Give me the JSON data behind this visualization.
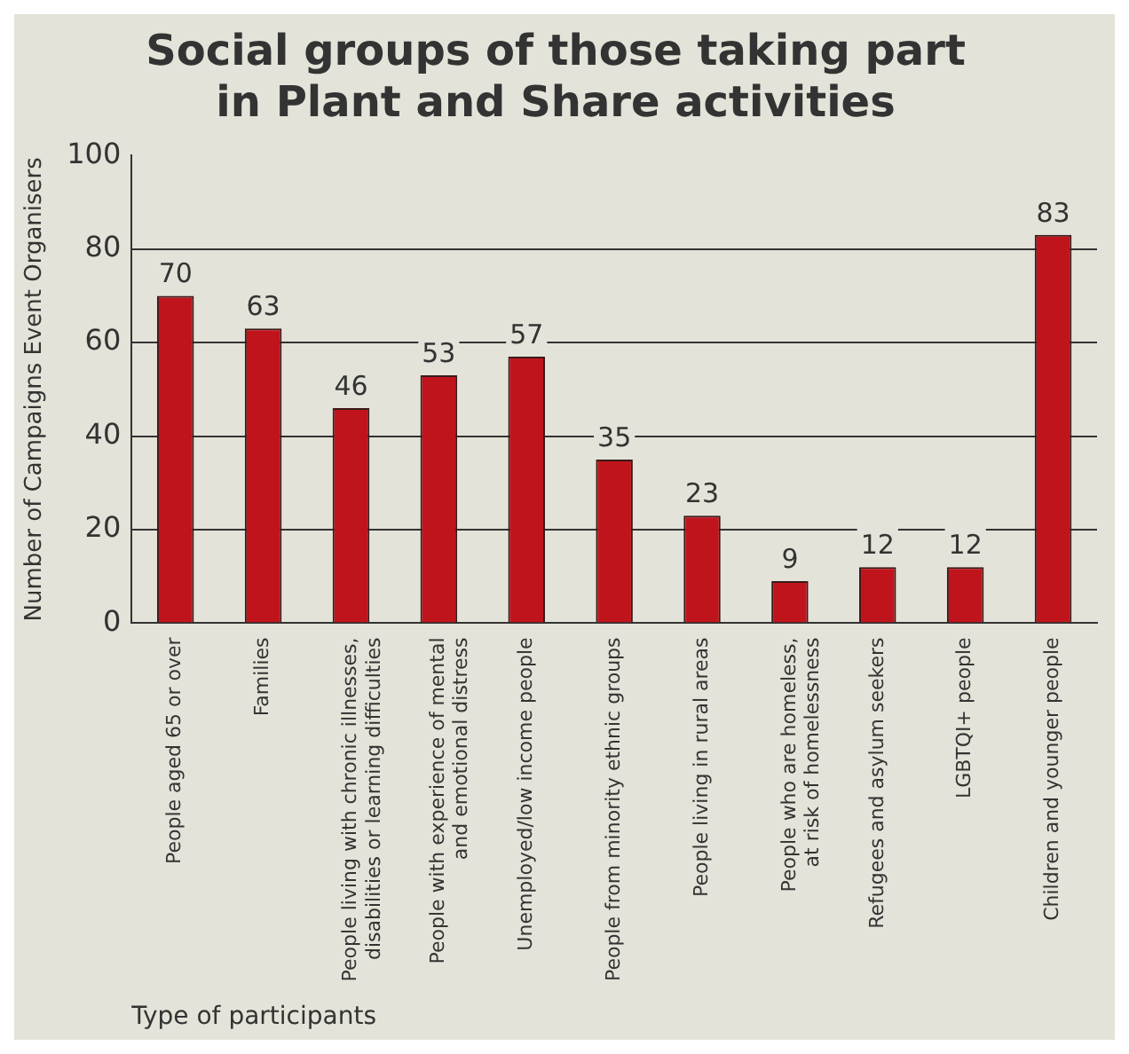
{
  "chart_data": {
    "type": "bar",
    "title": "Social groups of those taking part in Plant and Share activities",
    "xlabel": "Type of participants",
    "ylabel": "Number of Campaigns Event Organisers",
    "categories": [
      "People aged 65 or over",
      "Families",
      "People living with chronic illnesses,\ndisabilities or learning difficulties",
      "People with experience of mental\nand emotional distress",
      "Unemployed/low income people",
      "People from minority ethnic groups",
      "People living in rural areas",
      "People who are homeless,\nat risk of homelessness",
      "Refugees and asylum seekers",
      "LGBTQI+ people",
      "Children and younger people"
    ],
    "values": [
      70,
      63,
      46,
      53,
      57,
      35,
      23,
      9,
      12,
      12,
      83
    ],
    "color": "#c0141c",
    "ylim": [
      0,
      100
    ],
    "yticks": [
      0,
      20,
      40,
      60,
      80,
      100
    ],
    "grid": "y",
    "data_labels": true,
    "legend": false
  }
}
